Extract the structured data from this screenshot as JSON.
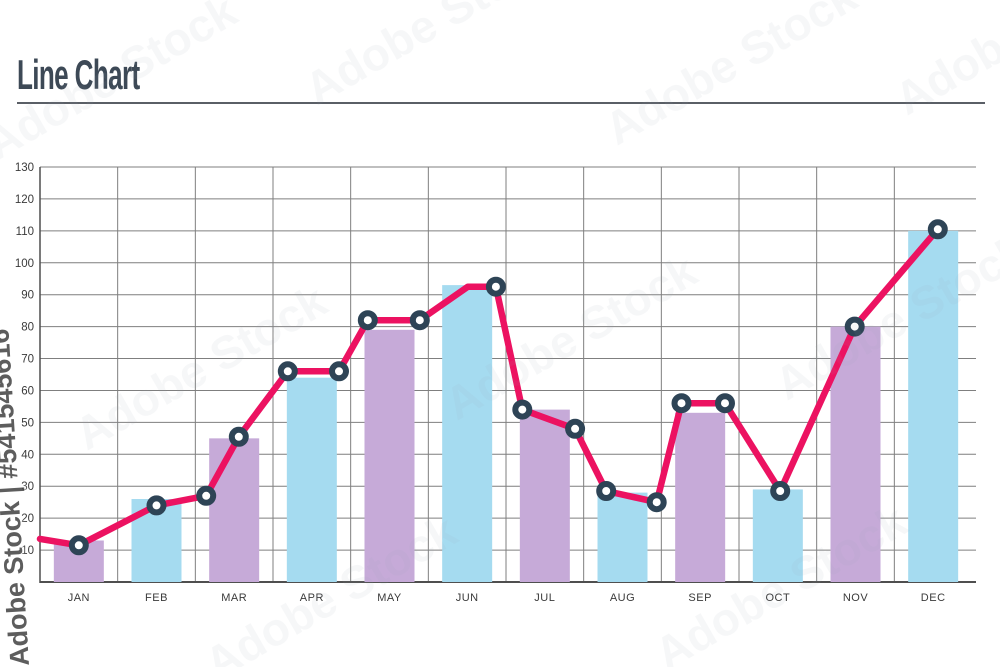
{
  "page": {
    "title": "Line Chart",
    "title_color": "#3d4956",
    "divider_color": "#5a5f66",
    "watermark": {
      "side_text": "Adobe Stock | #541545616",
      "tile_text": "Adobe Stock"
    }
  },
  "chart_data": {
    "type": "line",
    "title": "Line Chart",
    "categories": [
      "JAN",
      "FEB",
      "MAR",
      "APR",
      "MAY",
      "JUN",
      "JUL",
      "AUG",
      "SEP",
      "OCT",
      "NOV",
      "DEC"
    ],
    "ylim": [
      0,
      130
    ],
    "yticks": [
      10,
      20,
      30,
      40,
      50,
      60,
      70,
      80,
      90,
      100,
      110,
      120,
      130
    ],
    "grid": true,
    "legend_position": "none",
    "colors": {
      "grid": "#7f7f7f",
      "axis": "#4f4f4f",
      "tick_label": "#3a3a3a",
      "bar_purple": "#c6aad8",
      "bar_blue": "#a5dbf0",
      "line": "#ec1261",
      "marker_ring": "#2e4456",
      "marker_fill": "#ffffff"
    },
    "series": [
      {
        "name": "monthly-bars",
        "type": "bar",
        "values": [
          13,
          26,
          45,
          64,
          79,
          93,
          54,
          28,
          53,
          29,
          80,
          110
        ],
        "color_pattern": [
          "bar_purple",
          "bar_blue"
        ]
      },
      {
        "name": "trend-line",
        "type": "line",
        "x_unit": "months from chart left edge; month i center = i + 0.5",
        "point_format": "[x, value, has_marker]",
        "points": [
          [
            0.0,
            13.5,
            0
          ],
          [
            0.5,
            11.5,
            1
          ],
          [
            1.5,
            24.0,
            1
          ],
          [
            2.14,
            27.0,
            1
          ],
          [
            2.56,
            45.5,
            1
          ],
          [
            3.19,
            66.0,
            1
          ],
          [
            3.85,
            66.0,
            1
          ],
          [
            4.22,
            82.0,
            1
          ],
          [
            4.89,
            82.0,
            1
          ],
          [
            5.51,
            92.5,
            0
          ],
          [
            5.87,
            92.5,
            1
          ],
          [
            6.21,
            54.0,
            1
          ],
          [
            6.89,
            48.0,
            1
          ],
          [
            7.29,
            28.5,
            1
          ],
          [
            7.94,
            25.0,
            1
          ],
          [
            8.26,
            56.0,
            1
          ],
          [
            8.82,
            56.0,
            1
          ],
          [
            9.53,
            28.5,
            1
          ],
          [
            10.49,
            80.0,
            1
          ],
          [
            11.56,
            110.5,
            1
          ]
        ]
      }
    ]
  }
}
